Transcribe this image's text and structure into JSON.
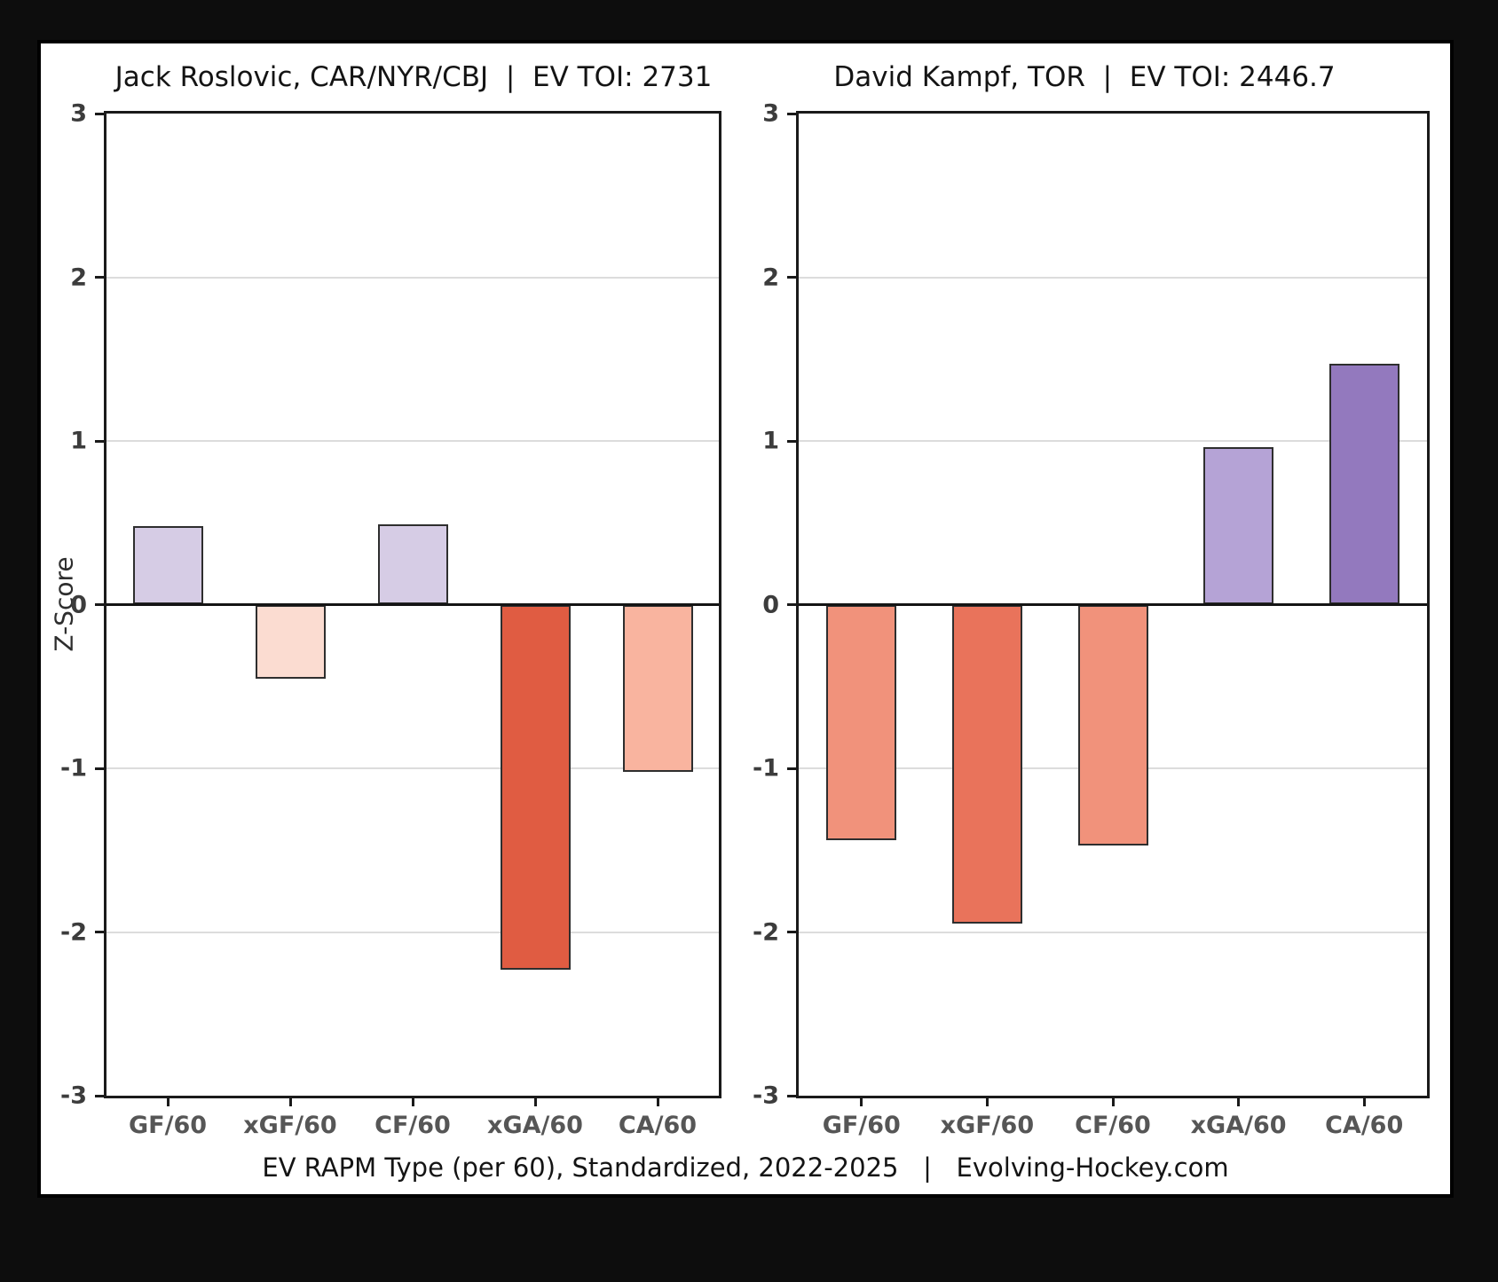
{
  "page": {
    "background": "#0d0d0d",
    "panel_background": "#ffffff",
    "panel_border": "#000000"
  },
  "ylabel": "Z-Score",
  "caption": "EV RAPM Type (per 60), Standardized, 2022-2025   |   Evolving-Hockey.com",
  "axis": {
    "y_ticks": [
      "3",
      "2",
      "1",
      "0",
      "-1",
      "-2",
      "-3"
    ],
    "grid_color": "#dcdcdc",
    "zero_line_color": "#141414",
    "spine_color": "#1a1a1a",
    "y_tick_label_color": "#3c3c3c",
    "x_tick_label_color": "#565656"
  },
  "chart_data": [
    {
      "type": "bar",
      "title": "Jack Roslovic, CAR/NYR/CBJ  |  EV TOI: 2731",
      "player": "Jack Roslovic",
      "teams": "CAR/NYR/CBJ",
      "ev_toi": 2731,
      "categories": [
        "GF/60",
        "xGF/60",
        "CF/60",
        "xGA/60",
        "CA/60"
      ],
      "values": [
        0.48,
        -0.45,
        0.49,
        -2.23,
        -1.02
      ],
      "bar_colors": [
        "#D6CCE5",
        "#FBDCD1",
        "#D6CCE5",
        "#E05C42",
        "#F9B49F"
      ],
      "bar_edge_color": "#2e2e2e",
      "ylabel": "Z-Score",
      "ylim": [
        -3,
        3
      ],
      "grid": true,
      "legend": false
    },
    {
      "type": "bar",
      "title": "David Kampf, TOR  |  EV TOI: 2446.7",
      "player": "David Kampf",
      "teams": "TOR",
      "ev_toi": 2446.7,
      "categories": [
        "GF/60",
        "xGF/60",
        "CF/60",
        "xGA/60",
        "CA/60"
      ],
      "values": [
        -1.44,
        -1.95,
        -1.47,
        0.96,
        1.47
      ],
      "bar_colors": [
        "#F1927B",
        "#E9735B",
        "#F1927B",
        "#B5A3D6",
        "#9379BE"
      ],
      "bar_edge_color": "#2e2e2e",
      "ylabel": "Z-Score",
      "ylim": [
        -3,
        3
      ],
      "grid": true,
      "legend": false
    }
  ]
}
